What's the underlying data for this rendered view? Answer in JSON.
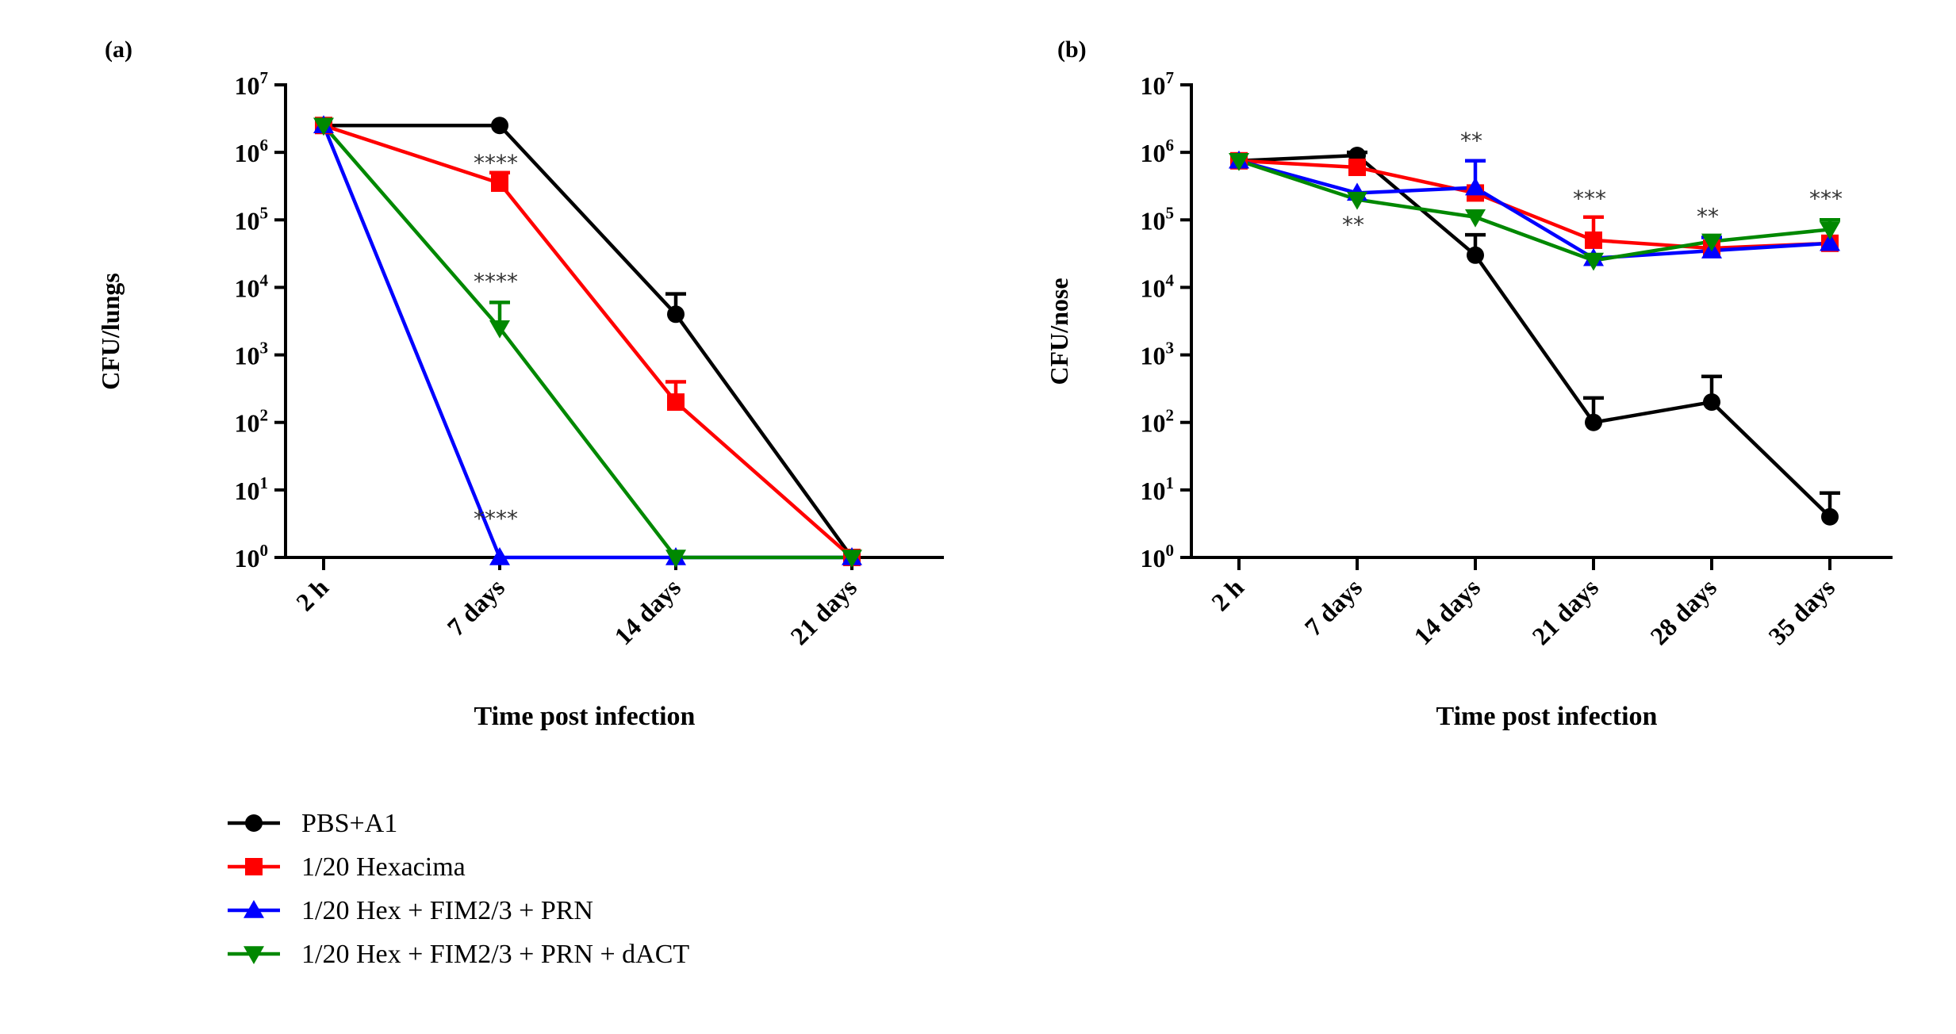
{
  "colors": {
    "PBS+A1": "#000000",
    "1/20 Hexacima": "#ff0000",
    "1/20 Hex + FIM2/3 + PRN": "#0000ff",
    "1/20 Hex + FIM2/3 + PRN + dACT": "#008800"
  },
  "legend": [
    {
      "name": "PBS+A1",
      "marker": "circle"
    },
    {
      "name": "1/20 Hexacima",
      "marker": "square"
    },
    {
      "name": "1/20 Hex + FIM2/3 + PRN",
      "marker": "triangle-up"
    },
    {
      "name": "1/20 Hex + FIM2/3 + PRN + dACT",
      "marker": "triangle-down"
    }
  ],
  "chart_data": [
    {
      "panel": "(a)",
      "type": "line",
      "yscale": "log",
      "ylim": [
        1,
        10000000
      ],
      "ylabel": "CFU/lungs",
      "xlabel": "Time post infection",
      "categories": [
        "2 h",
        "7 days",
        "14 days",
        "21 days"
      ],
      "yticks": [
        {
          "value": 1,
          "base": "10",
          "exp": "0"
        },
        {
          "value": 10,
          "base": "10",
          "exp": "1"
        },
        {
          "value": 100,
          "base": "10",
          "exp": "2"
        },
        {
          "value": 1000,
          "base": "10",
          "exp": "3"
        },
        {
          "value": 10000,
          "base": "10",
          "exp": "4"
        },
        {
          "value": 100000,
          "base": "10",
          "exp": "5"
        },
        {
          "value": 1000000,
          "base": "10",
          "exp": "6"
        },
        {
          "value": 10000000,
          "base": "10",
          "exp": "7"
        }
      ],
      "series": [
        {
          "name": "PBS+A1",
          "values": [
            2500000,
            2500000,
            4000,
            1
          ],
          "err": [
            null,
            null,
            8000,
            null
          ]
        },
        {
          "name": "1/20 Hexacima",
          "values": [
            2500000,
            350000,
            200,
            1
          ],
          "err": [
            null,
            500000,
            400,
            null
          ]
        },
        {
          "name": "1/20 Hex + FIM2/3 + PRN",
          "values": [
            2500000,
            1,
            1,
            1
          ],
          "err": [
            null,
            null,
            null,
            null
          ]
        },
        {
          "name": "1/20 Hex + FIM2/3 + PRN + dACT",
          "values": [
            2500000,
            2500,
            1,
            1
          ],
          "err": [
            null,
            6000,
            null,
            null
          ]
        }
      ],
      "annotations": [
        {
          "text": "****",
          "category": 1,
          "value": 750000
        },
        {
          "text": "****",
          "category": 1,
          "value": 13000
        },
        {
          "text": "****",
          "category": 1,
          "value": 4
        }
      ]
    },
    {
      "panel": "(b)",
      "type": "line",
      "yscale": "log",
      "ylim": [
        1,
        10000000
      ],
      "ylabel": "CFU/nose",
      "xlabel": "Time post infection",
      "categories": [
        "2 h",
        "7 days",
        "14 days",
        "21 days",
        "28 days",
        "35 days"
      ],
      "yticks": [
        {
          "value": 1,
          "base": "10",
          "exp": "0"
        },
        {
          "value": 10,
          "base": "10",
          "exp": "1"
        },
        {
          "value": 100,
          "base": "10",
          "exp": "2"
        },
        {
          "value": 1000,
          "base": "10",
          "exp": "3"
        },
        {
          "value": 10000,
          "base": "10",
          "exp": "4"
        },
        {
          "value": 100000,
          "base": "10",
          "exp": "5"
        },
        {
          "value": 1000000,
          "base": "10",
          "exp": "6"
        },
        {
          "value": 10000000,
          "base": "10",
          "exp": "7"
        }
      ],
      "series": [
        {
          "name": "PBS+A1",
          "values": [
            750000,
            900000,
            30000,
            100,
            200,
            4
          ],
          "err": [
            null,
            1000000,
            60000,
            230,
            480,
            9
          ]
        },
        {
          "name": "1/20 Hexacima",
          "values": [
            750000,
            600000,
            250000,
            50000,
            38000,
            45000
          ],
          "err": [
            null,
            null,
            null,
            110000,
            null,
            null
          ]
        },
        {
          "name": "1/20 Hex + FIM2/3 + PRN",
          "values": [
            750000,
            250000,
            300000,
            27000,
            35000,
            45000
          ],
          "err": [
            null,
            null,
            750000,
            null,
            55000,
            null
          ]
        },
        {
          "name": "1/20 Hex + FIM2/3 + PRN + dACT",
          "values": [
            750000,
            200000,
            110000,
            25000,
            48000,
            72000
          ],
          "err": [
            null,
            null,
            null,
            null,
            null,
            100000
          ]
        }
      ],
      "annotations": [
        {
          "text": "**",
          "category": 1,
          "value": 90000
        },
        {
          "text": "**",
          "category": 2,
          "value": 1600000
        },
        {
          "text": "***",
          "category": 3,
          "value": 220000
        },
        {
          "text": "**",
          "category": 4,
          "value": 120000
        },
        {
          "text": "***",
          "category": 5,
          "value": 220000
        }
      ]
    }
  ]
}
